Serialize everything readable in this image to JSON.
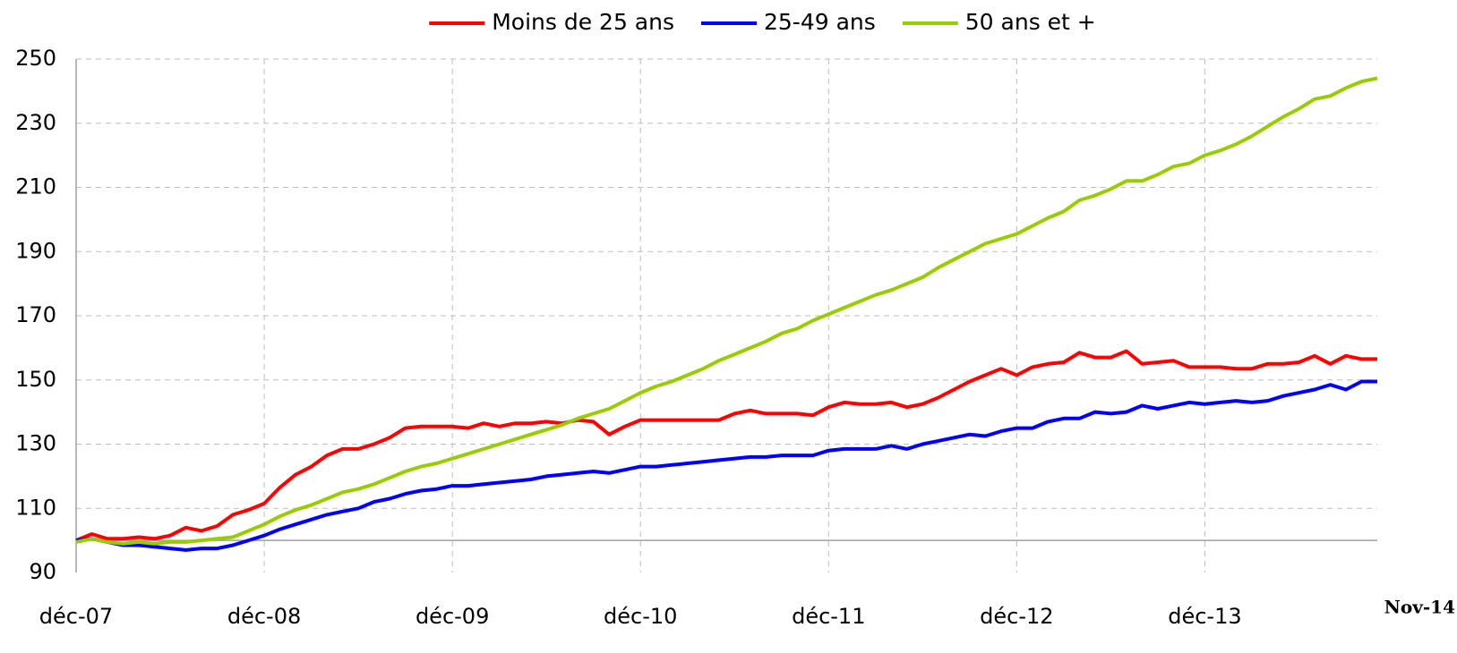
{
  "chart_data": {
    "type": "line",
    "categories": [
      "déc-07",
      null,
      null,
      null,
      null,
      null,
      null,
      null,
      null,
      null,
      null,
      null,
      "déc-08",
      null,
      null,
      null,
      null,
      null,
      null,
      null,
      null,
      null,
      null,
      null,
      "déc-09",
      null,
      null,
      null,
      null,
      null,
      null,
      null,
      null,
      null,
      null,
      null,
      "déc-10",
      null,
      null,
      null,
      null,
      null,
      null,
      null,
      null,
      null,
      null,
      null,
      "déc-11",
      null,
      null,
      null,
      null,
      null,
      null,
      null,
      null,
      null,
      null,
      null,
      "déc-12",
      null,
      null,
      null,
      null,
      null,
      null,
      null,
      null,
      null,
      null,
      null,
      "déc-13",
      null,
      null,
      null,
      null,
      null,
      null,
      null,
      null,
      null,
      null,
      "Nov-14"
    ],
    "series": [
      {
        "name": "Moins de 25 ans",
        "color": "#ff0000",
        "values": [
          100,
          102,
          100.5,
          100.5,
          101,
          100.5,
          101.5,
          104,
          103,
          104.5,
          108,
          109.5,
          111.5,
          116.5,
          120.5,
          123,
          126.5,
          128.5,
          128.5,
          130,
          132,
          135,
          135.5,
          135.5,
          135.5,
          135,
          136.5,
          135.5,
          136.5,
          136.5,
          137,
          136.5,
          137.5,
          137,
          133,
          135.5,
          137.5,
          137.5,
          137.5,
          137.5,
          137.5,
          137.5,
          139.5,
          140.5,
          139.5,
          139.5,
          139.5,
          139,
          141.5,
          143,
          142.5,
          142.5,
          143,
          141.5,
          142.5,
          144.5,
          147,
          149.5,
          151.5,
          153.5,
          151.5,
          154,
          155,
          155.5,
          158.5,
          157,
          157,
          159,
          155,
          155.5,
          156,
          154,
          154,
          154,
          153.5,
          153.5,
          155,
          155,
          155.5,
          157.5,
          155,
          157.5,
          156.5,
          156.5
        ]
      },
      {
        "name": "25-49 ans",
        "color": "#0000ff",
        "values": [
          100,
          100.5,
          99.5,
          98.5,
          98.5,
          98,
          97.5,
          97,
          97.5,
          97.5,
          98.5,
          100,
          101.5,
          103.5,
          105,
          106.5,
          108,
          109,
          110,
          112,
          113,
          114.5,
          115.5,
          116,
          117,
          117,
          117.5,
          118,
          118.5,
          119,
          120,
          120.5,
          121,
          121.5,
          121,
          122,
          123,
          123,
          123.5,
          124,
          124.5,
          125,
          125.5,
          126,
          126,
          126.5,
          126.5,
          126.5,
          128,
          128.5,
          128.5,
          128.5,
          129.5,
          128.5,
          130,
          131,
          132,
          133,
          132.5,
          134,
          135,
          135,
          137,
          138,
          138,
          140,
          139.5,
          140,
          142,
          141,
          142,
          143,
          142.5,
          143,
          143.5,
          143,
          143.5,
          145,
          146,
          147,
          148.5,
          147,
          149.5,
          149.5
        ]
      },
      {
        "name": "50 ans et +",
        "color": "#99cc00",
        "values": [
          99.5,
          100.5,
          99.5,
          99,
          99.5,
          99,
          99.5,
          99.5,
          100,
          100.5,
          101,
          103,
          105,
          107.5,
          109.5,
          111,
          113,
          115,
          116,
          117.5,
          119.5,
          121.5,
          123,
          124,
          125.5,
          127,
          128.5,
          130,
          131.5,
          133,
          134.5,
          136,
          138,
          139.5,
          141,
          143.5,
          146,
          148,
          149.5,
          151.5,
          153.5,
          156,
          158,
          160,
          162,
          164.5,
          166,
          168.5,
          170.5,
          172.5,
          174.5,
          176.5,
          178,
          180,
          182,
          185,
          187.5,
          190,
          192.5,
          194,
          195.5,
          198,
          200.5,
          202.5,
          206,
          207.5,
          209.5,
          212,
          212,
          214,
          216.5,
          217.5,
          220,
          221.5,
          223.5,
          226,
          229,
          232,
          234.5,
          237.5,
          238.5,
          241,
          243,
          244
        ]
      }
    ],
    "ylim": [
      90,
      250
    ],
    "yticks": [
      90,
      110,
      130,
      150,
      170,
      190,
      210,
      230,
      250
    ],
    "baseline": 100,
    "grid": true,
    "legend": "top"
  }
}
